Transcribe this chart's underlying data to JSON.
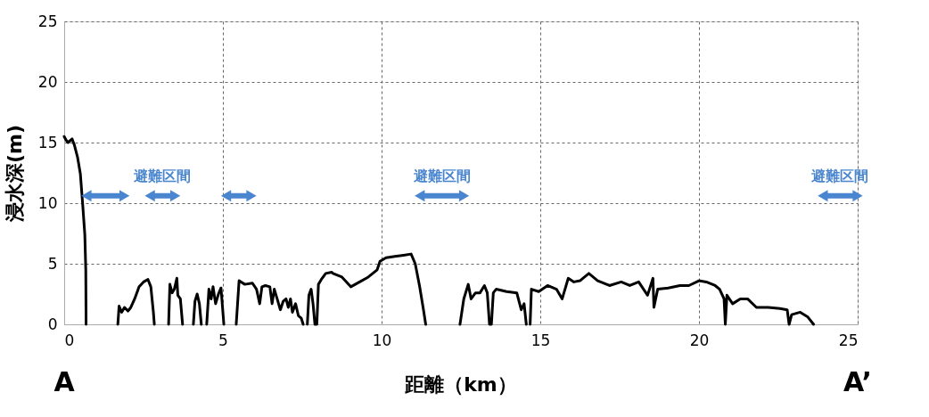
{
  "chart_data": {
    "type": "line",
    "xlabel": "距離（km）",
    "ylabel": "浸水深(m)",
    "xlim": [
      0,
      25
    ],
    "xticks": [
      0,
      5,
      10,
      15,
      20,
      25
    ],
    "ylim": [
      0,
      25
    ],
    "yticks": [
      0,
      5,
      10,
      15,
      20,
      25
    ],
    "grid": true,
    "line_style": "solid",
    "marker": "none",
    "series": [
      {
        "color": "#000000",
        "x": [
          0,
          0.06,
          0.12,
          0.25,
          0.32,
          0.42,
          0.51,
          0.58,
          0.65,
          0.68,
          0.69,
          1.2,
          1.69,
          1.73,
          1.81,
          1.9,
          2.01,
          2.1,
          2.22,
          2.36,
          2.5,
          2.64,
          2.73,
          2.81,
          2.84,
          3.05,
          3.29,
          3.33,
          3.4,
          3.47,
          3.55,
          3.58,
          3.66,
          3.73,
          3.9,
          4.07,
          4.12,
          4.19,
          4.26,
          4.32,
          4.4,
          4.49,
          4.56,
          4.63,
          4.69,
          4.77,
          4.86,
          4.94,
          4.98,
          5.03,
          5.2,
          5.42,
          5.51,
          5.69,
          5.93,
          6.06,
          6.16,
          6.23,
          6.34,
          6.48,
          6.55,
          6.62,
          6.71,
          6.81,
          6.9,
          6.99,
          7.06,
          7.13,
          7.19,
          7.29,
          7.38,
          7.47,
          7.53,
          7.6,
          7.66,
          7.71,
          7.78,
          7.84,
          7.9,
          7.96,
          8.01,
          8.1,
          8.24,
          8.43,
          8.47,
          8.75,
          9.03,
          9.31,
          9.58,
          9.86,
          9.95,
          10.14,
          10.42,
          10.69,
          10.93,
          11.06,
          11.2,
          11.32,
          11.39,
          12.0,
          12.47,
          12.59,
          12.73,
          12.82,
          12.96,
          13.1,
          13.24,
          13.33,
          13.4,
          13.46,
          13.52,
          13.61,
          13.94,
          14.26,
          14.4,
          14.49,
          14.56,
          14.62,
          14.68,
          14.72,
          14.95,
          15.23,
          15.51,
          15.69,
          15.88,
          16.06,
          16.25,
          16.53,
          16.81,
          17.18,
          17.55,
          17.82,
          18.1,
          18.38,
          18.55,
          18.58,
          18.7,
          19.03,
          19.4,
          19.68,
          20.0,
          20.23,
          20.51,
          20.65,
          20.79,
          20.83,
          20.88,
          21.06,
          21.3,
          21.53,
          21.81,
          22.18,
          22.55,
          22.78,
          22.84,
          22.92,
          23.19,
          23.43,
          23.61
        ],
        "values": [
          15.5,
          15.2,
          15.0,
          15.3,
          14.8,
          13.8,
          12.4,
          10.0,
          7.4,
          4.5,
          0,
          null,
          0,
          1.5,
          1.0,
          1.4,
          1.1,
          1.4,
          2.1,
          3.1,
          3.5,
          3.7,
          3.1,
          1.0,
          0,
          null,
          0,
          3.3,
          2.6,
          2.9,
          3.8,
          2.4,
          2.1,
          0,
          null,
          0,
          1.9,
          2.5,
          1.7,
          0,
          null,
          0,
          2.9,
          2.1,
          3.1,
          1.7,
          2.5,
          3.0,
          1.7,
          0,
          null,
          0,
          3.6,
          3.3,
          3.4,
          2.9,
          1.7,
          3.1,
          3.2,
          3.1,
          1.7,
          2.9,
          2.1,
          1.2,
          1.9,
          2.1,
          1.4,
          2.1,
          1.0,
          1.7,
          0.7,
          0.5,
          0,
          null,
          0,
          2.4,
          2.9,
          1.7,
          0,
          0,
          3.3,
          3.7,
          4.2,
          4.3,
          4.2,
          3.9,
          3.1,
          3.5,
          3.9,
          4.5,
          5.2,
          5.5,
          5.6,
          5.7,
          5.8,
          5.0,
          3.1,
          1.2,
          0,
          null,
          0,
          2.1,
          3.3,
          2.1,
          2.6,
          2.6,
          3.2,
          2.6,
          0,
          0,
          2.6,
          2.9,
          2.7,
          2.6,
          1.2,
          1.7,
          0,
          null,
          0,
          2.9,
          2.7,
          3.2,
          2.9,
          2.1,
          3.8,
          3.5,
          3.6,
          4.2,
          3.6,
          3.2,
          3.5,
          3.2,
          3.5,
          2.4,
          3.8,
          1.4,
          2.9,
          3.0,
          3.2,
          3.2,
          3.6,
          3.5,
          3.2,
          2.9,
          2.1,
          0,
          2.4,
          1.7,
          2.1,
          2.1,
          1.4,
          1.4,
          1.3,
          1.2,
          0,
          0.8,
          1.0,
          0.6,
          0
        ]
      },
      {
        "marker": "triangle",
        "color": "#4a86d0",
        "x": [
          0.7,
          1.9,
          2.3,
          2.7,
          3.1,
          3.5,
          4.3,
          5.1,
          5.9,
          8.5,
          11.2,
          11.9,
          12.6,
          18.2,
          23.9,
          24.45,
          25
        ],
        "values": [
          10.6,
          10.6,
          null,
          10.6,
          10.6,
          10.6,
          null,
          10.6,
          10.6,
          null,
          10.6,
          10.6,
          10.6,
          null,
          10.6,
          10.6,
          10.6
        ]
      }
    ],
    "annotations": [
      {
        "text": "避難区間",
        "x": 3.1,
        "y": 10.6
      },
      {
        "text": "避難区間",
        "x": 11.9,
        "y": 10.6
      },
      {
        "text": "避難区間",
        "x": 24.45,
        "y": 10.6
      },
      "A",
      "A’"
    ]
  }
}
